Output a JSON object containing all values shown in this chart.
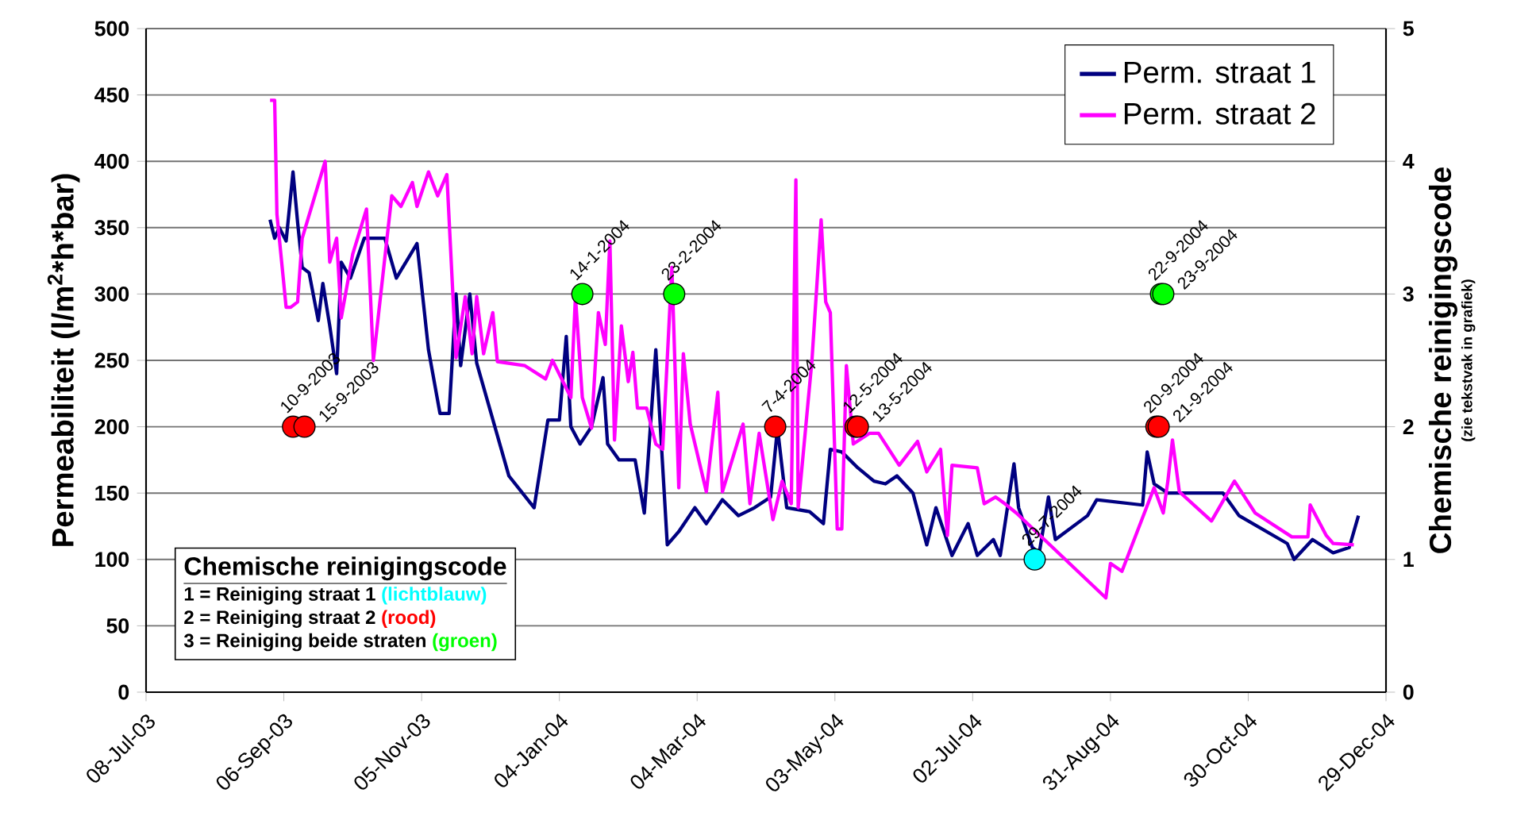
{
  "chart_data": {
    "type": "line",
    "ylabel": "Permeabiliteit  (l/m$^{2}$*h*bar)",
    "y2label": "Chemische reinigingscode",
    "xlim": [
      "2003-07-08",
      "2004-12-29"
    ],
    "xticks": [
      {
        "value": "2003-07-08",
        "label": "08-Jul-03"
      },
      {
        "value": "2003-09-06",
        "label": "06-Sep-03"
      },
      {
        "value": "2003-11-05",
        "label": "05-Nov-03"
      },
      {
        "value": "2004-01-04",
        "label": "04-Jan-04"
      },
      {
        "value": "2004-03-04",
        "label": "04-Mar-04"
      },
      {
        "value": "2004-05-03",
        "label": "03-May-04"
      },
      {
        "value": "2004-07-02",
        "label": "02-Jul-04"
      },
      {
        "value": "2004-08-31",
        "label": "31-Aug-04"
      },
      {
        "value": "2004-10-30",
        "label": "30-Oct-04"
      },
      {
        "value": "2004-12-29",
        "label": "29-Dec-04"
      }
    ],
    "ylim": [
      0,
      500
    ],
    "yticks": [
      0,
      50,
      100,
      150,
      200,
      250,
      300,
      350,
      400,
      450,
      500
    ],
    "y2lim": [
      0,
      5
    ],
    "y2ticks": [
      0,
      1,
      2,
      3,
      4,
      5
    ],
    "grid": "y",
    "legend": "top right",
    "annotations": [
      "(zie tekstvak in grafiek)",
      "Chemische reinigingscode",
      "1 = Reiniging straat 1",
      "(lichtblauw)",
      "2 = Reiniging straat 2",
      "(rood)",
      "3 = Reiniging beide straten",
      "(groen)"
    ],
    "series": [
      {
        "name": "Perm. straat 1",
        "color": "#000080",
        "x": [
          "2003-08-31",
          "2003-09-02",
          "2003-09-04",
          "2003-09-07",
          "2003-09-10",
          "2003-09-12",
          "2003-09-14",
          "2003-09-17",
          "2003-09-21",
          "2003-09-23",
          "2003-09-26",
          "2003-09-29",
          "2003-10-01",
          "2003-10-05",
          "2003-10-11",
          "2003-10-20",
          "2003-10-25",
          "2003-11-03",
          "2003-11-08",
          "2003-11-13",
          "2003-11-17",
          "2003-11-20",
          "2003-11-22",
          "2003-11-26",
          "2003-11-29",
          "2003-12-13",
          "2003-12-24",
          "2003-12-30",
          "2004-01-04",
          "2004-01-07",
          "2004-01-09",
          "2004-01-13",
          "2004-01-18",
          "2004-01-23",
          "2004-01-25",
          "2004-01-30",
          "2004-02-06",
          "2004-02-10",
          "2004-02-15",
          "2004-02-20",
          "2004-02-25",
          "2004-03-03",
          "2004-03-08",
          "2004-03-15",
          "2004-03-22",
          "2004-03-29",
          "2004-04-05",
          "2004-04-08",
          "2004-04-12",
          "2004-04-22",
          "2004-04-28",
          "2004-05-01",
          "2004-05-06",
          "2004-05-13",
          "2004-05-20",
          "2004-05-25",
          "2004-05-30",
          "2004-06-06",
          "2004-06-12",
          "2004-06-16",
          "2004-06-23",
          "2004-06-30",
          "2004-07-04",
          "2004-07-11",
          "2004-07-14",
          "2004-07-20",
          "2004-07-22",
          "2004-07-28",
          "2004-07-31",
          "2004-08-04",
          "2004-08-07",
          "2004-08-21",
          "2004-08-25",
          "2004-09-14",
          "2004-09-16",
          "2004-09-19",
          "2004-09-25",
          "2004-10-19",
          "2004-10-26",
          "2004-11-16",
          "2004-11-19",
          "2004-11-27",
          "2004-12-06",
          "2004-12-13",
          "2004-12-17"
        ],
        "values": [
          356,
          342,
          350,
          340,
          392,
          354,
          320,
          316,
          280,
          308,
          276,
          240,
          324,
          312,
          342,
          342,
          312,
          338,
          258,
          210,
          210,
          300,
          246,
          300,
          248,
          163,
          139,
          205,
          205,
          268,
          200,
          187,
          200,
          237,
          187,
          175,
          175,
          135,
          258,
          111,
          121,
          139,
          127,
          145,
          133,
          139,
          147,
          199,
          139,
          136,
          127,
          183,
          181,
          169,
          159,
          157,
          163,
          150,
          111,
          139,
          103,
          127,
          103,
          115,
          103,
          172,
          139,
          109,
          105,
          147,
          115,
          133,
          145,
          141,
          181,
          157,
          150,
          150,
          133,
          112,
          100,
          115,
          105,
          109,
          133
        ]
      },
      {
        "name": "Perm. straat 2",
        "color": "#ff00ff",
        "x": [
          "2003-08-31",
          "2003-09-02",
          "2003-09-03",
          "2003-09-07",
          "2003-09-09",
          "2003-09-12",
          "2003-09-14",
          "2003-09-24",
          "2003-09-26",
          "2003-09-29",
          "2003-10-01",
          "2003-10-06",
          "2003-10-12",
          "2003-10-15",
          "2003-10-23",
          "2003-10-27",
          "2003-11-01",
          "2003-11-03",
          "2003-11-08",
          "2003-11-12",
          "2003-11-16",
          "2003-11-20",
          "2003-11-24",
          "2003-11-27",
          "2003-11-29",
          "2003-12-02",
          "2003-12-06",
          "2003-12-08",
          "2003-12-20",
          "2003-12-29",
          "2004-01-01",
          "2004-01-09",
          "2004-01-11",
          "2004-01-14",
          "2004-01-18",
          "2004-01-21",
          "2004-01-24",
          "2004-01-26",
          "2004-01-28",
          "2004-01-31",
          "2004-02-03",
          "2004-02-05",
          "2004-02-07",
          "2004-02-11",
          "2004-02-15",
          "2004-02-18",
          "2004-02-22",
          "2004-02-25",
          "2004-02-27",
          "2004-03-01",
          "2004-03-08",
          "2004-03-13",
          "2004-03-15",
          "2004-03-24",
          "2004-03-27",
          "2004-03-31",
          "2004-04-06",
          "2004-04-10",
          "2004-04-14",
          "2004-04-16",
          "2004-04-17",
          "2004-04-23",
          "2004-04-27",
          "2004-04-29",
          "2004-05-01",
          "2004-05-04",
          "2004-05-06",
          "2004-05-08",
          "2004-05-11",
          "2004-05-18",
          "2004-05-22",
          "2004-05-31",
          "2004-06-08",
          "2004-06-12",
          "2004-06-18",
          "2004-06-21",
          "2004-06-23",
          "2004-07-04",
          "2004-07-07",
          "2004-07-12",
          "2004-07-16",
          "2004-07-21",
          "2004-08-29",
          "2004-08-31",
          "2004-09-05",
          "2004-09-19",
          "2004-09-23",
          "2004-09-25",
          "2004-09-27",
          "2004-09-30",
          "2004-10-14",
          "2004-10-24",
          "2004-11-02",
          "2004-11-18",
          "2004-11-25",
          "2004-11-26",
          "2004-12-03",
          "2004-12-06",
          "2004-12-15"
        ],
        "values": [
          446,
          446,
          360,
          290,
          290,
          294,
          342,
          400,
          324,
          342,
          282,
          330,
          364,
          250,
          374,
          366,
          384,
          366,
          392,
          374,
          390,
          252,
          298,
          255,
          298,
          255,
          286,
          249,
          246,
          236,
          250,
          222,
          298,
          222,
          199,
          286,
          262,
          340,
          190,
          276,
          234,
          256,
          214,
          214,
          187,
          183,
          320,
          154,
          255,
          202,
          151,
          226,
          151,
          202,
          142,
          195,
          130,
          159,
          142,
          386,
          139,
          250,
          356,
          294,
          286,
          123,
          123,
          246,
          187,
          195,
          195,
          171,
          189,
          166,
          183,
          118,
          171,
          169,
          142,
          147,
          142,
          135,
          71,
          97,
          91,
          154,
          135,
          159,
          190,
          151,
          129,
          159,
          135,
          117,
          117,
          141,
          118,
          112,
          111
        ]
      },
      {
        "type": "scatter",
        "axis": "y2",
        "color": "#00ffff",
        "x": [
          "2004-07-29"
        ],
        "values": [
          1
        ],
        "value_labels": [
          "29-7-2004"
        ]
      },
      {
        "type": "scatter",
        "axis": "y2",
        "color": "#ff0000",
        "x": [
          "2003-09-10",
          "2003-09-15",
          "2004-04-07",
          "2004-05-12",
          "2004-05-13",
          "2004-09-20",
          "2004-09-21"
        ],
        "values": [
          2,
          2,
          2,
          2,
          2,
          2,
          2
        ],
        "value_labels": [
          "10-9-2003",
          "15-9-2003",
          "7-4-2004",
          "12-5-2004",
          "13-5-2004",
          "20-9-2004",
          "21-9-2004"
        ]
      },
      {
        "type": "scatter",
        "axis": "y2",
        "color": "#00ff00",
        "x": [
          "2004-01-14",
          "2004-02-23",
          "2004-09-22",
          "2004-09-23"
        ],
        "values": [
          3,
          3,
          3,
          3
        ],
        "value_labels": [
          "14-1-2004",
          "23-2-2004",
          "22-9-2004",
          "23-9-2004"
        ]
      }
    ]
  }
}
